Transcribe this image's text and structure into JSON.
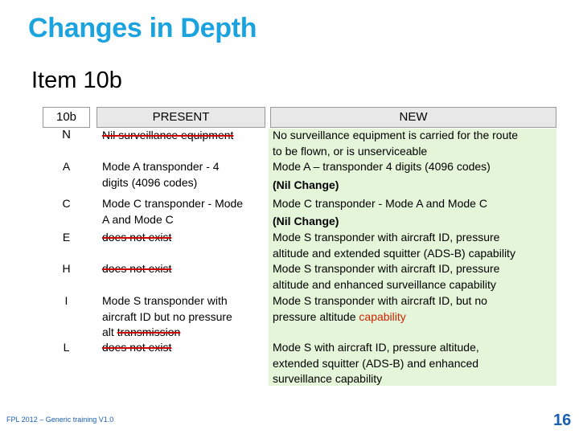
{
  "title": "Changes in Depth",
  "subtitle": "Item 10b",
  "table": {
    "headers": {
      "code": "10b",
      "code_sub": "N",
      "present": "PRESENT",
      "new": "NEW"
    },
    "rows": [
      {
        "code": "A",
        "present": "Mode A transponder - 4\ndigits (4096 codes)",
        "new": "Mode A – transponder 4 digits (4096 codes)",
        "new_note": "(Nil Change)"
      },
      {
        "code": "C",
        "present": "Mode C transponder - Mode\nA and Mode C",
        "new": "Mode C transponder - Mode A and Mode C",
        "new_note": "(Nil Change)"
      },
      {
        "code": "E",
        "present": "does not exist",
        "new": "Mode S transponder with aircraft ID, pressure\naltitude and extended squitter (ADS-B) capability"
      },
      {
        "code": "H",
        "present": "does not exist",
        "new": "Mode S transponder with aircraft ID, pressure\naltitude and enhanced surveillance capability"
      },
      {
        "code": "I",
        "present_a": "Mode S transponder with\naircraft ID but no pressure\nalt ",
        "present_b": "transmission",
        "new_a": "Mode S transponder with aircraft ID, but no\npressure altitude ",
        "new_b": "capability"
      },
      {
        "code": "L",
        "present": "does not exist",
        "new": "Mode S with aircraft ID, pressure altitude,\nextended squitter (ADS-B) and enhanced\nsurveillance capability"
      }
    ],
    "row_n": {
      "present": "Nil surveillance equipment",
      "new": "No surveillance equipment is carried for the route\nto be flown, or is unserviceable"
    }
  },
  "footer": "FPL 2012 – Generic training V1.0",
  "page_number": "16",
  "colors": {
    "title": "#1aa3df",
    "footer": "#1a5fb4",
    "strike": "#cc0000",
    "new_bg": "#e4f5d9"
  }
}
